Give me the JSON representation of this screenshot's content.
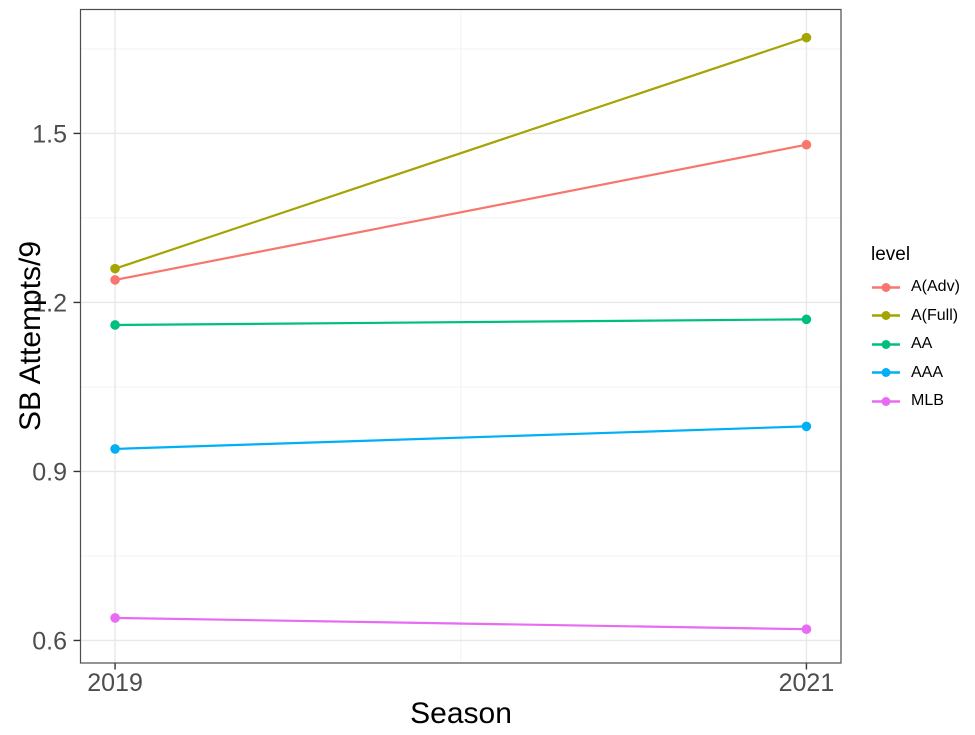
{
  "chart_data": {
    "type": "line",
    "title": "",
    "xlabel": "Season",
    "ylabel": "SB Attempts/9",
    "x": [
      2019,
      2021
    ],
    "x_tick_labels": [
      "2019",
      "2021"
    ],
    "y_ticks": [
      0.6,
      0.9,
      1.2,
      1.5
    ],
    "y_tick_labels": [
      "0.6",
      "0.9",
      "1.2",
      "1.5"
    ],
    "y_minor_ticks": [
      0.75,
      1.05,
      1.35,
      1.65
    ],
    "x_minor_ticks": [
      2020
    ],
    "xlim": [
      2018.9,
      2021.1
    ],
    "ylim": [
      0.56,
      1.72
    ],
    "grid": true,
    "legend_position": "right",
    "legend": {
      "title": "level",
      "entries": [
        "A(Adv)",
        "A(Full)",
        "AA",
        "AAA",
        "MLB"
      ]
    },
    "series": [
      {
        "name": "A(Adv)",
        "color": "#F8766D",
        "values": [
          1.24,
          1.48
        ]
      },
      {
        "name": "A(Full)",
        "color": "#A3A500",
        "values": [
          1.26,
          1.67
        ]
      },
      {
        "name": "AA",
        "color": "#00BF7D",
        "values": [
          1.16,
          1.17
        ]
      },
      {
        "name": "AAA",
        "color": "#00B0F6",
        "values": [
          0.94,
          0.98
        ]
      },
      {
        "name": "MLB",
        "color": "#E76BF3",
        "values": [
          0.64,
          0.62
        ]
      }
    ]
  },
  "style": {
    "background": "#ffffff",
    "panel_border_color": "#4d4d4d",
    "grid_major_color": "#e8e8e8",
    "grid_minor_color": "#f4f4f4",
    "tick_mark_color": "#333333",
    "tick_label_color": "#4d4d4d",
    "axis_title_color": "#000000"
  }
}
